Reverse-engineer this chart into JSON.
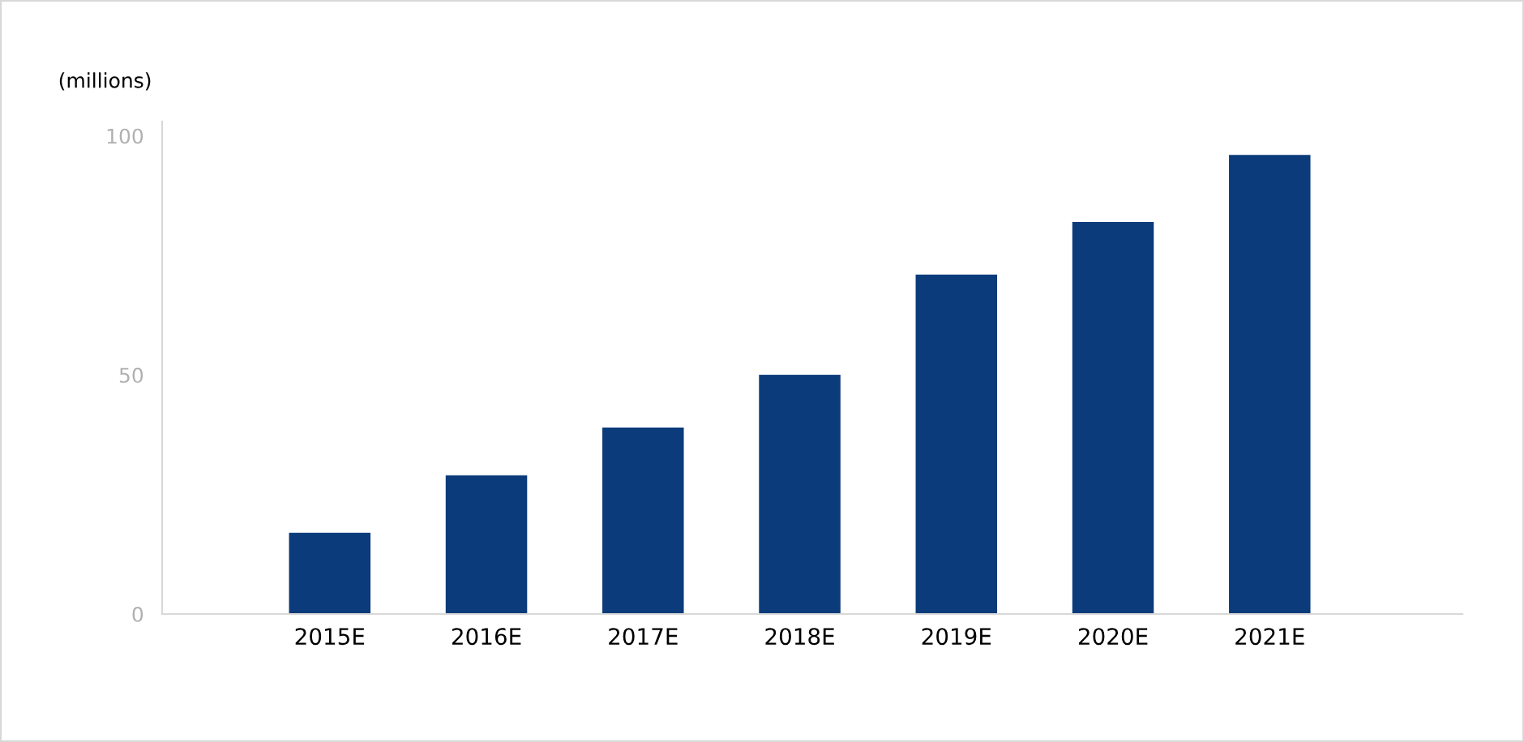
{
  "chart_data": {
    "type": "bar",
    "ylabel": "(millions)",
    "categories": [
      "2015E",
      "2016E",
      "2017E",
      "2018E",
      "2019E",
      "2020E",
      "2021E"
    ],
    "values": [
      17,
      29,
      39,
      50,
      71,
      82,
      96
    ],
    "color": "#0b3b7a",
    "ylim": [
      0,
      103
    ],
    "yticks": [
      0,
      50,
      100
    ],
    "grid": false
  }
}
